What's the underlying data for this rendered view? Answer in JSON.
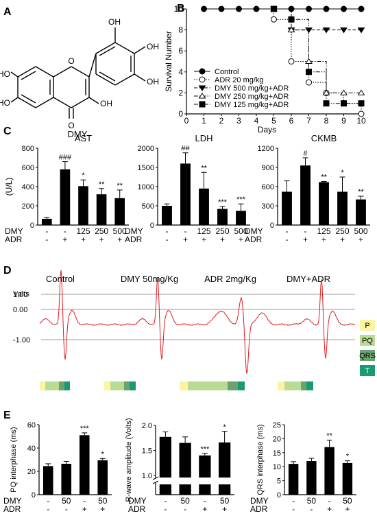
{
  "panel_labels": [
    "A",
    "B",
    "C",
    "D",
    "E"
  ],
  "panel_a": {
    "compound": "DMY",
    "atoms": [
      "HO",
      "O",
      "OH",
      "O",
      "OH",
      "OH",
      "OH",
      "HO"
    ]
  },
  "chart_data": [
    {
      "id": "B",
      "type": "line",
      "xlabel": "Days",
      "ylabel": "Survival Number",
      "xlim": [
        0,
        10
      ],
      "ylim": [
        0,
        10
      ],
      "xticks": [
        0,
        1,
        2,
        3,
        4,
        5,
        6,
        7,
        8,
        9,
        10
      ],
      "yticks": [
        0,
        2,
        4,
        6,
        8,
        10
      ],
      "legend_position": "bottom-left",
      "series": [
        {
          "name": "Control",
          "marker": "circle-filled",
          "line": "solid",
          "x": [
            1,
            2,
            3,
            4,
            5,
            6,
            7,
            8,
            9,
            10
          ],
          "y": [
            10,
            10,
            10,
            10,
            10,
            10,
            10,
            10,
            10,
            10
          ]
        },
        {
          "name": "ADR 20 mg/kg",
          "marker": "circle-open",
          "line": "dotted",
          "x": [
            1,
            5,
            6,
            7,
            8,
            9,
            10
          ],
          "y": [
            10,
            9,
            5,
            3,
            2,
            1,
            0
          ]
        },
        {
          "name": "DMY 500 mg/kg+ADR",
          "marker": "triangle-down-filled",
          "line": "dashed",
          "x": [
            1,
            5,
            6,
            7,
            8,
            9,
            10
          ],
          "y": [
            10,
            10,
            8,
            8,
            8,
            8,
            8
          ]
        },
        {
          "name": "DMY 250 mg/kg+ADR",
          "marker": "triangle-up-open",
          "line": "dashdot",
          "x": [
            1,
            5,
            6,
            7,
            8,
            9,
            10
          ],
          "y": [
            10,
            10,
            8,
            5,
            2,
            2,
            2
          ]
        },
        {
          "name": "DMY 125 mg/kg+ADR",
          "marker": "square-filled",
          "line": "dashdotdot",
          "x": [
            1,
            5,
            6,
            7,
            8,
            9,
            10
          ],
          "y": [
            10,
            10,
            9,
            4,
            1,
            1,
            1
          ]
        }
      ]
    },
    {
      "id": "C1",
      "type": "bar",
      "title": "AST",
      "ylabel": "(U/L)",
      "ylim": [
        0,
        800
      ],
      "yticks": [
        0,
        200,
        400,
        600,
        800
      ],
      "values": [
        65,
        580,
        405,
        320,
        280
      ],
      "errors": [
        15,
        80,
        65,
        60,
        85
      ],
      "labels": [
        "",
        "###",
        "*",
        "**",
        "**"
      ]
    },
    {
      "id": "C2",
      "type": "bar",
      "title": "LDH",
      "ylabel": "",
      "ylim": [
        0,
        2000
      ],
      "yticks": [
        0,
        500,
        1000,
        1500,
        2000
      ],
      "values": [
        500,
        1600,
        950,
        420,
        370
      ],
      "errors": [
        50,
        280,
        420,
        60,
        180
      ],
      "labels": [
        "",
        "##",
        "**",
        "***",
        "***"
      ]
    },
    {
      "id": "C3",
      "type": "bar",
      "title": "CKMB",
      "ylabel": "",
      "ylim": [
        0,
        1200
      ],
      "yticks": [
        0,
        300,
        600,
        900,
        1200
      ],
      "values": [
        520,
        930,
        670,
        520,
        400
      ],
      "errors": [
        170,
        120,
        10,
        230,
        50
      ],
      "labels": [
        "",
        "#",
        "**",
        "*",
        "**"
      ]
    },
    {
      "id": "D",
      "type": "line",
      "ylabel": "Volts",
      "ylim": [
        -1,
        1.8
      ],
      "yticks": [
        1.0,
        0.0,
        -1.0
      ],
      "ytick_labels": [
        "1.00",
        "0.00",
        "-1.00"
      ],
      "groups": [
        "Control",
        "DMY 50mg/Kg",
        "ADR 2mg/Kg",
        "DMY+ADR"
      ],
      "legend": [
        {
          "label": "P",
          "color": "#fbf4a0"
        },
        {
          "label": "PQ",
          "color": "#b9dc95"
        },
        {
          "label": "QRS",
          "color": "#6aa36e"
        },
        {
          "label": "T",
          "color": "#1a9a73"
        }
      ],
      "series": [
        {
          "name": "Control",
          "segments": {
            "P": 8,
            "PQ": 20,
            "QRS": 8,
            "T": 8
          }
        },
        {
          "name": "DMY 50mg/Kg",
          "segments": {
            "P": 9,
            "PQ": 20,
            "QRS": 8,
            "T": 9
          }
        },
        {
          "name": "ADR 2mg/Kg",
          "segments": {
            "P": 12,
            "PQ": 58,
            "QRS": 15,
            "T": 10
          }
        },
        {
          "name": "DMY+ADR",
          "segments": {
            "P": 10,
            "PQ": 24,
            "QRS": 8,
            "T": 10
          }
        }
      ]
    },
    {
      "id": "E1",
      "type": "bar",
      "ylabel": "PQ interphase (ms)",
      "ylim": [
        0,
        60
      ],
      "yticks": [
        0,
        20,
        40,
        60
      ],
      "values": [
        24.5,
        26.5,
        51,
        29.5
      ],
      "errors": [
        2,
        2,
        2,
        1.5
      ],
      "labels": [
        "",
        "",
        "***",
        "*"
      ]
    },
    {
      "id": "E2",
      "type": "bar",
      "ylabel": "R-wave amplitude (Volts)",
      "ylim": [
        1.0,
        2.0
      ],
      "yticks": [
        1.0,
        1.5,
        2.0
      ],
      "axis_break": true,
      "values": [
        1.77,
        1.65,
        1.4,
        1.66
      ],
      "errors": [
        0.1,
        0.12,
        0.04,
        0.22
      ],
      "labels": [
        "",
        "",
        "***",
        "*"
      ]
    },
    {
      "id": "E3",
      "type": "bar",
      "ylabel": "QRS interphase (ms)",
      "ylim": [
        0,
        25
      ],
      "yticks": [
        0,
        5,
        10,
        15,
        20,
        25
      ],
      "values": [
        11,
        12,
        17,
        11.3
      ],
      "errors": [
        0.8,
        1,
        2.5,
        0.8
      ],
      "labels": [
        "",
        "",
        "**",
        "*"
      ]
    }
  ],
  "treatment_rows": {
    "row_labels": [
      "DMY",
      "ADR"
    ],
    "panel_c": {
      "dmy": [
        "-",
        "-",
        "125",
        "250",
        "500"
      ],
      "adr": [
        "-",
        "+",
        "+",
        "+",
        "+"
      ]
    },
    "panel_e": {
      "dmy": [
        "-",
        "50",
        "-",
        "50"
      ],
      "adr": [
        "-",
        "-",
        "+",
        "+"
      ]
    }
  },
  "colors": {
    "bar": "#000000",
    "ecg": "#e0191d",
    "grid": "#9a9a9a"
  }
}
